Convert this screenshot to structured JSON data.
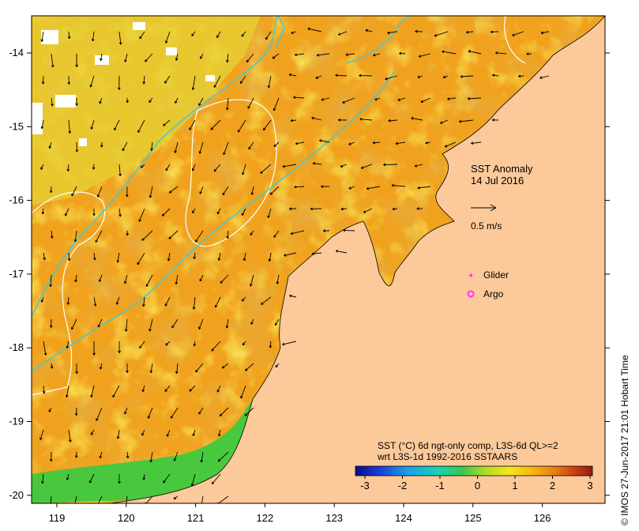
{
  "map": {
    "title": "SST Anomaly",
    "date": "14 Jul 2016",
    "vector_scale_label": "0.5 m/s",
    "lon_ticks": [
      "119",
      "120",
      "121",
      "122",
      "123",
      "124",
      "125",
      "126"
    ],
    "lat_ticks": [
      "-14",
      "-15",
      "-16",
      "-17",
      "-18",
      "-19",
      "-20"
    ],
    "legend": {
      "glider_label": "Glider",
      "argo_label": "Argo",
      "glider_color": "#ff33ff",
      "argo_color": "#ff33ff"
    },
    "colorbar": {
      "line1": "SST (°C) 6d ngt-only comp, L3S-6d QL>=2",
      "line2": "wrt L3S-1d 1992-2016 SSTAARS",
      "ticks": [
        "-3",
        "-2",
        "-1",
        "0",
        "1",
        "2",
        "3"
      ],
      "range": [
        -3,
        3
      ],
      "colors": [
        "#0a0a8c",
        "#1a3cd8",
        "#1aa0e6",
        "#1ad2b4",
        "#37c84a",
        "#b4dc28",
        "#f5e61e",
        "#f5b414",
        "#e67814",
        "#c83c14",
        "#8c1e14"
      ]
    },
    "credit": "© IMOS 27-Jun-2017 21:01 Hobart Time",
    "colors": {
      "land": "#fcc99a",
      "ocean_base": "#f0a21e",
      "ocean_warm": "#d07a18",
      "ocean_cool": "#e8d832",
      "coastal_green": "#48c83c",
      "contour_cyan": "#4ec8c8",
      "contour_white": "#ffffff"
    }
  }
}
